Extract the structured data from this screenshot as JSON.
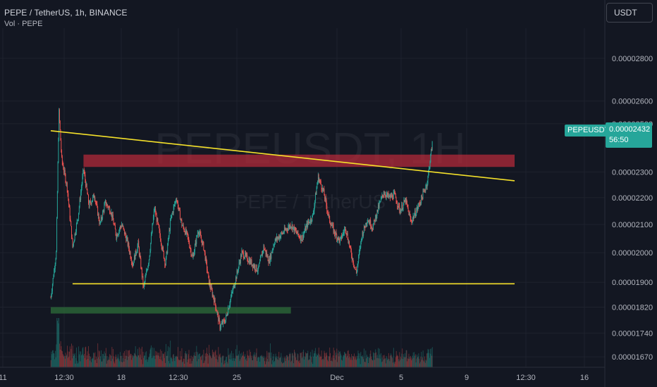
{
  "header": {
    "title": "PEPE / TetherUS, 1h, BINANCE",
    "volume_label": "Vol · PEPE",
    "currency": "USDT"
  },
  "watermark": {
    "line1": "PEPEUSDT, 1H",
    "line2": "PEPE / TetherUS"
  },
  "price_badge": {
    "symbol": "PEPEUSDT",
    "price": "0.00002432",
    "countdown": "56:50",
    "color": "#26a69a"
  },
  "colors": {
    "background": "#131722",
    "up_candle": "#26a69a",
    "down_candle": "#ef5350",
    "trendline": "#f5e12a",
    "resistance_zone": "#b22a3a",
    "support_zone": "#2e6e3a"
  },
  "chart_data": {
    "type": "candlestick",
    "y_axis": {
      "scale": "log",
      "range": [
        1.64e-05,
        2.95e-05
      ],
      "ticks": [
        "0.00002800",
        "0.00002600",
        "0.00002500",
        "0.00002300",
        "0.00002200",
        "0.00002100",
        "0.00002000",
        "0.00001900",
        "0.00001820",
        "0.00001740",
        "0.00001670"
      ]
    },
    "x_axis": {
      "ticks": [
        "11",
        "12:30",
        "18",
        "12:30",
        "25",
        "Dec",
        "5",
        "9",
        "12:30",
        "16"
      ]
    },
    "grid": true,
    "price_path": [
      [
        0,
        1.85e-05
      ],
      [
        1,
        2e-05
      ],
      [
        1.5,
        2.55e-05
      ],
      [
        2,
        2.35e-05
      ],
      [
        3,
        2.24e-05
      ],
      [
        4,
        2.02e-05
      ],
      [
        5,
        2.13e-05
      ],
      [
        6,
        2.31e-05
      ],
      [
        7,
        2.17e-05
      ],
      [
        8,
        2.21e-05
      ],
      [
        9,
        2.1e-05
      ],
      [
        10,
        2.18e-05
      ],
      [
        11,
        2.15e-05
      ],
      [
        12,
        2.06e-05
      ],
      [
        13,
        2.1e-05
      ],
      [
        14,
        2.04e-05
      ],
      [
        15,
        1.96e-05
      ],
      [
        16,
        2.03e-05
      ],
      [
        17,
        1.88e-05
      ],
      [
        18,
        1.98e-05
      ],
      [
        19,
        2.16e-05
      ],
      [
        20,
        2.06e-05
      ],
      [
        21,
        1.96e-05
      ],
      [
        22,
        2.12e-05
      ],
      [
        23,
        2.2e-05
      ],
      [
        24,
        2.1e-05
      ],
      [
        25,
        2.06e-05
      ],
      [
        26,
        1.98e-05
      ],
      [
        27,
        2.08e-05
      ],
      [
        28,
        2.02e-05
      ],
      [
        29,
        1.9e-05
      ],
      [
        30,
        1.84e-05
      ],
      [
        31,
        1.76e-05
      ],
      [
        32,
        1.78e-05
      ],
      [
        33,
        1.85e-05
      ],
      [
        34,
        1.92e-05
      ],
      [
        35,
        2e-05
      ],
      [
        36,
        1.98e-05
      ],
      [
        37,
        1.96e-05
      ],
      [
        38,
        1.94e-05
      ],
      [
        39,
        2.02e-05
      ],
      [
        40,
        1.97e-05
      ],
      [
        41,
        2.04e-05
      ],
      [
        42,
        2.06e-05
      ],
      [
        43,
        2.08e-05
      ],
      [
        44,
        2.1e-05
      ],
      [
        45,
        2.07e-05
      ],
      [
        46,
        2.05e-05
      ],
      [
        47,
        2.1e-05
      ],
      [
        48,
        2.13e-05
      ],
      [
        49,
        2.28e-05
      ],
      [
        50,
        2.22e-05
      ],
      [
        51,
        2.12e-05
      ],
      [
        52,
        2.07e-05
      ],
      [
        53,
        2.04e-05
      ],
      [
        54,
        2.09e-05
      ],
      [
        55,
        2e-05
      ],
      [
        56,
        1.93e-05
      ],
      [
        57,
        2.06e-05
      ],
      [
        58,
        2.12e-05
      ],
      [
        59,
        2.09e-05
      ],
      [
        60,
        2.16e-05
      ],
      [
        61,
        2.22e-05
      ],
      [
        62,
        2.2e-05
      ],
      [
        63,
        2.21e-05
      ],
      [
        64,
        2.15e-05
      ],
      [
        65,
        2.19e-05
      ],
      [
        66,
        2.11e-05
      ],
      [
        67,
        2.15e-05
      ],
      [
        68,
        2.2e-05
      ],
      [
        69,
        2.26e-05
      ],
      [
        70,
        2.432e-05
      ]
    ],
    "annotations": [
      {
        "type": "trendline",
        "from": [
          0,
          2.47e-05
        ],
        "to": [
          85,
          2.265e-05
        ]
      },
      {
        "type": "trendline",
        "from": [
          4,
          1.895e-05
        ],
        "to": [
          85,
          1.895e-05
        ]
      },
      {
        "type": "zone",
        "x": [
          6,
          85
        ],
        "y": [
          2.32e-05,
          2.37e-05
        ]
      },
      {
        "type": "zone",
        "x": [
          0,
          44
        ],
        "y": [
          1.8e-05,
          1.82e-05
        ]
      }
    ]
  }
}
